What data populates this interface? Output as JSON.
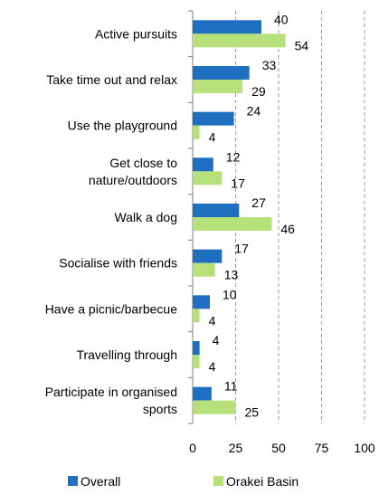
{
  "chart_data": {
    "type": "bar",
    "orientation": "horizontal",
    "title": "",
    "xlabel": "",
    "ylabel": "",
    "categories": [
      [
        "Active pursuits"
      ],
      [
        "Take time out and relax"
      ],
      [
        "Use the playground"
      ],
      [
        "Get close to",
        "nature/outdoors"
      ],
      [
        "Walk a dog"
      ],
      [
        "Socialise with friends"
      ],
      [
        "Have a picnic/barbecue"
      ],
      [
        "Travelling through"
      ],
      [
        "Participate in organised",
        "sports"
      ]
    ],
    "series": [
      {
        "name": "Overall",
        "color": "#1f6fc0",
        "values": [
          40,
          33,
          24,
          12,
          27,
          17,
          10,
          4,
          11
        ]
      },
      {
        "name": "Orakei Basin",
        "color": "#b5e07a",
        "values": [
          54,
          29,
          4,
          17,
          46,
          13,
          4,
          4,
          25
        ]
      }
    ],
    "xlim": [
      0,
      100
    ],
    "xticks": [
      0,
      25,
      50,
      75,
      100
    ],
    "grid": "vertical dashed",
    "legend": "bottom"
  }
}
